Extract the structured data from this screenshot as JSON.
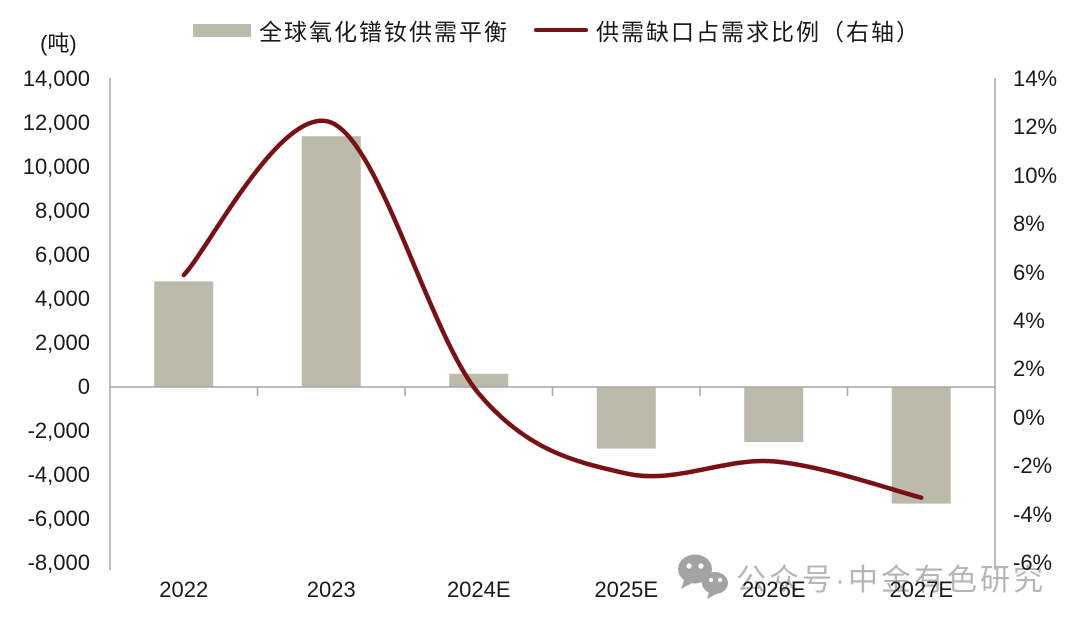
{
  "chart_data": {
    "type": "bar+line combo, dual axis",
    "categories": [
      "2022",
      "2023",
      "2024E",
      "2025E",
      "2026E",
      "2027E"
    ],
    "series": [
      {
        "name": "全球氧化镨钕供需平衡",
        "type": "bar",
        "axis": "left",
        "unit": "吨",
        "values": [
          4800,
          11400,
          600,
          -2800,
          -2500,
          -5300
        ]
      },
      {
        "name": "供需缺口占需求比例（右轴）",
        "type": "line",
        "axis": "right",
        "unit": "%",
        "values": [
          5.9,
          12.2,
          1.0,
          -2.3,
          -1.8,
          -3.3
        ]
      }
    ],
    "left_axis": {
      "unit_label": "(吨)",
      "min": -8000,
      "max": 14000,
      "step": 2000,
      "tick_labels": [
        "14,000",
        "12,000",
        "10,000",
        "8,000",
        "6,000",
        "4,000",
        "2,000",
        "0",
        "-2,000",
        "-4,000",
        "-6,000",
        "-8,000"
      ]
    },
    "right_axis": {
      "min": -6,
      "max": 14,
      "step": 2,
      "tick_labels": [
        "14%",
        "12%",
        "10%",
        "8%",
        "6%",
        "4%",
        "2%",
        "0%",
        "-2%",
        "-4%",
        "-6%"
      ]
    },
    "legend_position": "top",
    "grid": false
  },
  "legend": {
    "bar_label": "全球氧化镨钕供需平衡",
    "line_label": "供需缺口占需求比例（右轴）"
  },
  "watermark": {
    "icon": "wechat-icon",
    "text": "公众号·中金有色研究"
  },
  "colors": {
    "bar": "#bcbaab",
    "line": "#7a1013",
    "axis": "#a6a6a6",
    "text": "#1a1a1a",
    "watermark_text": "#b6b6b6",
    "watermark_icon": "#a3a3a3"
  }
}
